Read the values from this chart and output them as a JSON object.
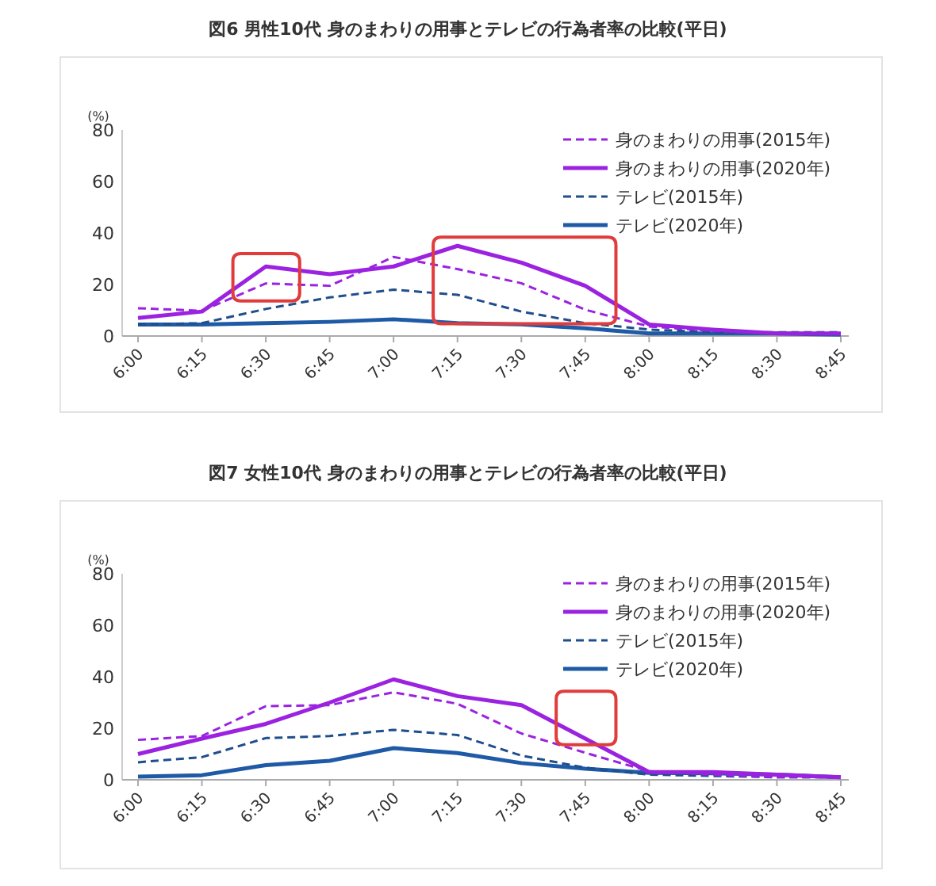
{
  "chart_data": [
    {
      "type": "line",
      "title": "図6 男性10代 身のまわりの用事とテレビの行為者率の比較(平日)",
      "ylabel": "(%)",
      "categories": [
        "6:00",
        "6:15",
        "6:30",
        "6:45",
        "7:00",
        "7:15",
        "7:30",
        "7:45",
        "8:00",
        "8:15",
        "8:30",
        "8:45"
      ],
      "ylim": [
        0,
        80
      ],
      "yticks": [
        0,
        20,
        40,
        60,
        80
      ],
      "legend": "top right",
      "grid": false,
      "marker": "none",
      "series": [
        {
          "name": "身のまわりの用事(2015年)",
          "color": "#9b22e0",
          "line_style": "dashed",
          "values": [
            10.8,
            9.8,
            20.4,
            19.5,
            30.7,
            26,
            20.5,
            10.2,
            3.7,
            2,
            1,
            1
          ]
        },
        {
          "name": "身のまわりの用事(2020年)",
          "color": "#9b22e0",
          "line_style": "solid",
          "values": [
            7,
            9.5,
            27,
            24,
            27,
            35,
            28.5,
            19.5,
            4.5,
            2.5,
            1,
            1
          ]
        },
        {
          "name": "テレビ(2015年)",
          "color": "#1f4e8c",
          "line_style": "dashed",
          "values": [
            4.5,
            5,
            10.5,
            15,
            18,
            16,
            9.5,
            5,
            2.5,
            1.5,
            1.5,
            1.5
          ]
        },
        {
          "name": "テレビ(2020年)",
          "color": "#1f5aa6",
          "line_style": "solid",
          "values": [
            4.5,
            4.5,
            5,
            5.5,
            6.5,
            5,
            4.5,
            3,
            1,
            1,
            1,
            0.5
          ]
        }
      ]
    },
    {
      "type": "line",
      "title": "図7 女性10代 身のまわりの用事とテレビの行為者率の比較(平日)",
      "ylabel": "(%)",
      "categories": [
        "6:00",
        "6:15",
        "6:30",
        "6:45",
        "7:00",
        "7:15",
        "7:30",
        "7:45",
        "8:00",
        "8:15",
        "8:30",
        "8:45"
      ],
      "ylim": [
        0,
        80
      ],
      "yticks": [
        0,
        20,
        40,
        60,
        80
      ],
      "legend": "top right",
      "grid": false,
      "marker": "none",
      "series": [
        {
          "name": "身のまわりの用事(2015年)",
          "color": "#9b22e0",
          "line_style": "dashed",
          "values": [
            15.5,
            17,
            28.6,
            29,
            34,
            29.5,
            18,
            10.5,
            3.3,
            2,
            1,
            1
          ]
        },
        {
          "name": "身のまわりの用事(2020年)",
          "color": "#9b22e0",
          "line_style": "solid",
          "values": [
            10,
            16,
            21.7,
            30,
            39,
            32.5,
            29,
            16,
            3,
            3,
            2,
            1
          ]
        },
        {
          "name": "テレビ(2015年)",
          "color": "#1f4e8c",
          "line_style": "dashed",
          "values": [
            6.8,
            8.8,
            16.2,
            17,
            19.4,
            17.4,
            9.4,
            4.7,
            2,
            1.5,
            1,
            1
          ]
        },
        {
          "name": "テレビ(2020年)",
          "color": "#1f5aa6",
          "line_style": "solid",
          "values": [
            1.2,
            1.8,
            5.7,
            7.4,
            12.3,
            10.4,
            6.5,
            4.3,
            2.7,
            2.5,
            2,
            1
          ]
        }
      ]
    }
  ]
}
